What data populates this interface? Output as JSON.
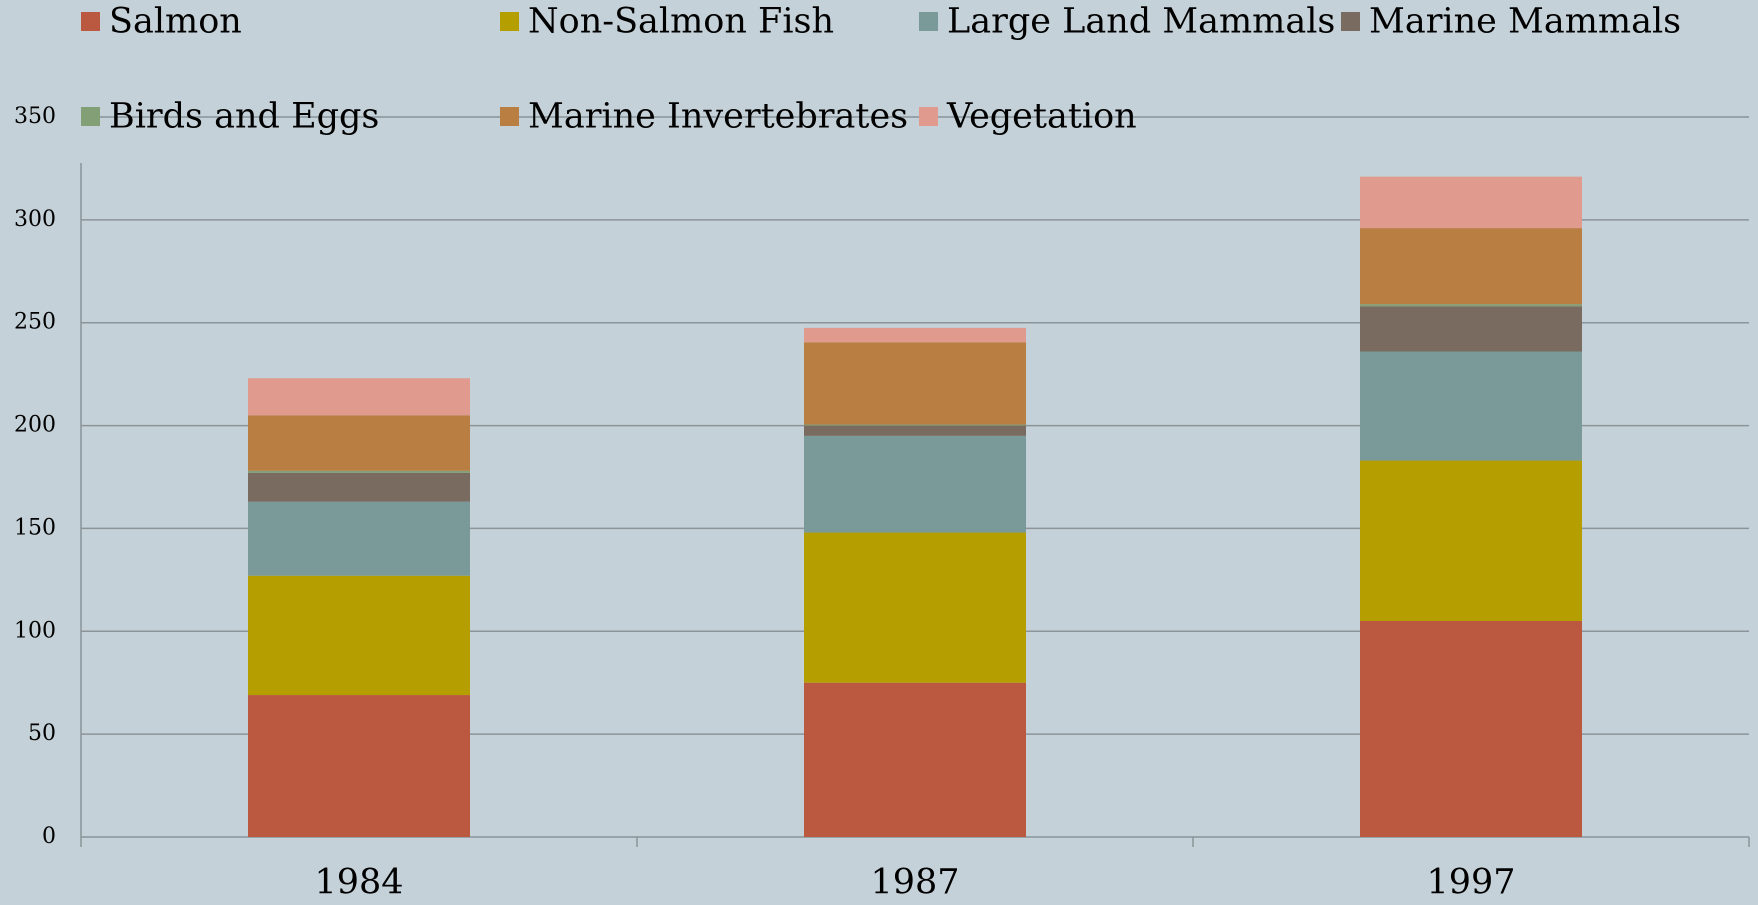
{
  "chart_data": {
    "type": "stacked_bar",
    "categories": [
      "1984",
      "1987",
      "1997"
    ],
    "series": [
      {
        "name": "Salmon",
        "color": "#bb5940",
        "values": [
          69,
          75,
          105
        ]
      },
      {
        "name": "Non-Salmon Fish",
        "color": "#b49e00",
        "values": [
          58,
          73,
          78
        ]
      },
      {
        "name": "Large Land Mammals",
        "color": "#7a9a9a",
        "values": [
          36,
          47,
          53
        ]
      },
      {
        "name": "Marine Mammals",
        "color": "#7a6b60",
        "values": [
          14,
          5,
          22
        ]
      },
      {
        "name": "Birds and Eggs",
        "color": "#829f75",
        "values": [
          1,
          0.5,
          1
        ]
      },
      {
        "name": "Marine Invertebrates",
        "color": "#b97f42",
        "values": [
          27,
          40,
          37
        ]
      },
      {
        "name": "Vegetation",
        "color": "#e09a8e",
        "values": [
          18,
          7,
          25
        ]
      }
    ],
    "ylim": [
      0,
      350
    ],
    "yticks": [
      0,
      50,
      100,
      150,
      200,
      250,
      300,
      350
    ],
    "grid": true,
    "legend": "top"
  }
}
